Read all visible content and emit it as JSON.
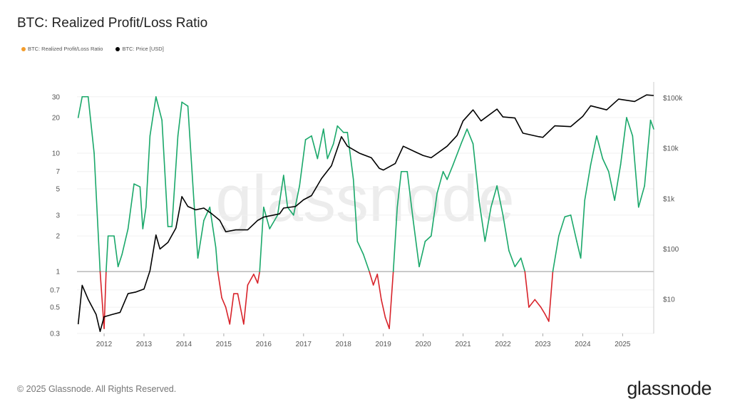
{
  "title": "BTC: Realized Profit/Loss Ratio",
  "footer": "© 2025 Glassnode. All Rights Reserved.",
  "logo": "glassnode",
  "watermark": "glassnode",
  "chart_data": {
    "type": "line",
    "title": "BTC: Realized Profit/Loss Ratio",
    "legend": [
      {
        "name": "BTC: Realized Profit/Loss Ratio",
        "color": "#f39c2b"
      },
      {
        "name": "BTC: Price [USD]",
        "color": "#000000"
      }
    ],
    "legend_placement": "top-left",
    "grid": true,
    "x_ticks": [
      "2012",
      "2013",
      "2014",
      "2015",
      "2016",
      "2017",
      "2018",
      "2019",
      "2020",
      "2021",
      "2022",
      "2023",
      "2024",
      "2025"
    ],
    "xlim": [
      2011.32,
      2025.78
    ],
    "y_left": {
      "scale": "log",
      "ticks": [
        "30",
        "20",
        "10",
        "7",
        "5",
        "3",
        "2",
        "1",
        "0.7",
        "0.5",
        "0.3"
      ],
      "lim": [
        0.3,
        40
      ],
      "reference_line": 1
    },
    "y_right": {
      "scale": "log",
      "ticks": [
        "$100k",
        "$10k",
        "$1k",
        "$100",
        "$10"
      ],
      "tick_values": [
        100000,
        10000,
        1000,
        100,
        10
      ],
      "lim": [
        2.1,
        208000
      ]
    },
    "colors": {
      "above_1": "#1aa86a",
      "below_1": "#d8232a",
      "price": "#000000"
    },
    "series": [
      {
        "name": "BTC: Realized Profit/Loss Ratio",
        "axis": "left",
        "x": [
          2011.35,
          2011.45,
          2011.6,
          2011.75,
          2011.9,
          2012.0,
          2012.05,
          2012.1,
          2012.25,
          2012.35,
          2012.45,
          2012.6,
          2012.75,
          2012.9,
          2012.97,
          2013.05,
          2013.15,
          2013.3,
          2013.45,
          2013.6,
          2013.7,
          2013.85,
          2013.95,
          2014.1,
          2014.25,
          2014.35,
          2014.5,
          2014.65,
          2014.8,
          2014.85,
          2014.95,
          2015.05,
          2015.15,
          2015.25,
          2015.35,
          2015.5,
          2015.6,
          2015.75,
          2015.85,
          2015.9,
          2016.0,
          2016.15,
          2016.35,
          2016.5,
          2016.6,
          2016.75,
          2016.9,
          2017.05,
          2017.2,
          2017.35,
          2017.5,
          2017.6,
          2017.75,
          2017.85,
          2018.0,
          2018.1,
          2018.25,
          2018.35,
          2018.5,
          2018.65,
          2018.75,
          2018.85,
          2018.95,
          2019.05,
          2019.15,
          2019.25,
          2019.35,
          2019.45,
          2019.6,
          2019.75,
          2019.9,
          2020.05,
          2020.2,
          2020.35,
          2020.5,
          2020.6,
          2020.75,
          2020.95,
          2021.1,
          2021.25,
          2021.4,
          2021.55,
          2021.7,
          2021.85,
          2022.0,
          2022.15,
          2022.3,
          2022.45,
          2022.55,
          2022.65,
          2022.8,
          2022.95,
          2023.05,
          2023.15,
          2023.25,
          2023.4,
          2023.55,
          2023.7,
          2023.85,
          2023.95,
          2024.05,
          2024.2,
          2024.35,
          2024.5,
          2024.65,
          2024.8,
          2024.95,
          2025.1,
          2025.25,
          2025.4,
          2025.55,
          2025.7,
          2025.78
        ],
        "values": [
          20,
          30,
          30,
          10,
          1,
          0.33,
          1,
          2,
          2,
          1.1,
          1.4,
          2.3,
          5.5,
          5.2,
          2.3,
          3.5,
          14,
          30,
          19,
          2.4,
          2.4,
          14,
          27,
          25,
          4,
          1.3,
          2.7,
          3.5,
          1.6,
          1,
          0.6,
          0.5,
          0.36,
          0.65,
          0.65,
          0.36,
          0.77,
          0.95,
          0.8,
          1,
          3.5,
          2.3,
          3,
          6.5,
          3.5,
          3,
          5.3,
          13,
          14,
          9,
          16,
          9,
          12,
          17,
          15,
          15,
          6,
          1.8,
          1.4,
          1,
          0.77,
          0.95,
          0.58,
          0.41,
          0.33,
          1,
          3.5,
          7,
          7,
          2.7,
          1.1,
          1.8,
          2,
          4.6,
          7,
          6,
          8,
          12,
          16,
          12,
          4,
          1.8,
          3.5,
          5.3,
          3,
          1.5,
          1.1,
          1.3,
          1,
          0.5,
          0.58,
          0.5,
          0.44,
          0.38,
          1,
          2,
          2.9,
          3,
          1.8,
          1.3,
          4,
          8,
          14,
          9,
          7,
          4,
          8,
          20,
          14,
          3.5,
          5.3,
          19,
          16
        ]
      },
      {
        "name": "BTC: Price [USD]",
        "axis": "right",
        "x": [
          2011.35,
          2011.45,
          2011.6,
          2011.8,
          2011.9,
          2012.0,
          2012.2,
          2012.4,
          2012.6,
          2012.8,
          2013.0,
          2013.15,
          2013.3,
          2013.4,
          2013.6,
          2013.8,
          2013.95,
          2014.1,
          2014.3,
          2014.5,
          2014.7,
          2014.9,
          2015.05,
          2015.3,
          2015.6,
          2015.85,
          2016.0,
          2016.4,
          2016.5,
          2016.8,
          2017.0,
          2017.2,
          2017.45,
          2017.7,
          2017.95,
          2018.1,
          2018.4,
          2018.7,
          2018.9,
          2019.0,
          2019.3,
          2019.5,
          2019.8,
          2020.0,
          2020.2,
          2020.6,
          2020.85,
          2021.0,
          2021.25,
          2021.45,
          2021.85,
          2022.0,
          2022.3,
          2022.5,
          2022.9,
          2023.0,
          2023.3,
          2023.7,
          2024.0,
          2024.2,
          2024.6,
          2024.9,
          2025.3,
          2025.6,
          2025.78
        ],
        "values": [
          3.2,
          19,
          10,
          5,
          2.3,
          4.5,
          5,
          5.5,
          13,
          14,
          16,
          37,
          190,
          100,
          135,
          260,
          1100,
          700,
          600,
          650,
          500,
          370,
          220,
          240,
          240,
          370,
          430,
          500,
          650,
          700,
          950,
          1150,
          2500,
          4500,
          17000,
          11000,
          8000,
          6500,
          4000,
          3700,
          5000,
          11000,
          8500,
          7200,
          6500,
          11000,
          18000,
          35000,
          58000,
          35000,
          60000,
          42000,
          40000,
          20000,
          17000,
          16500,
          28000,
          27000,
          43000,
          70000,
          58000,
          95000,
          85000,
          115000,
          112000
        ]
      }
    ]
  }
}
